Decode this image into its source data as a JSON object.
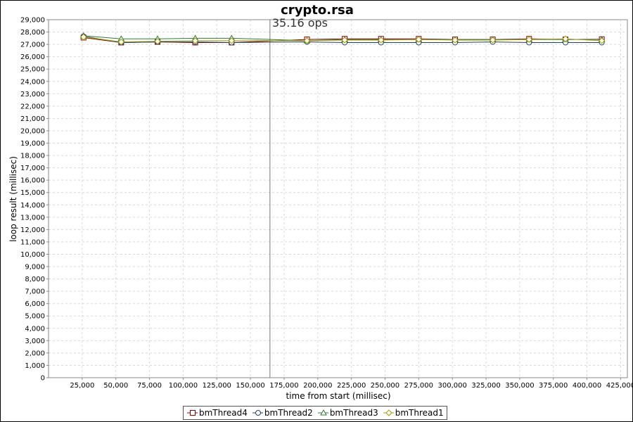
{
  "chart_data": {
    "type": "line",
    "title": "crypto.rsa",
    "xlabel": "time from start (millisec)",
    "ylabel": "loop result (millisec)",
    "xlim": [
      0,
      430000
    ],
    "ylim": [
      0,
      29000
    ],
    "xticks": [
      25000,
      50000,
      75000,
      100000,
      125000,
      150000,
      175000,
      200000,
      225000,
      250000,
      275000,
      300000,
      325000,
      350000,
      375000,
      400000,
      425000
    ],
    "xtick_labels": [
      "25,000",
      "50,000",
      "75,000",
      "100,000",
      "125,000",
      "150,000",
      "175,000",
      "200,000",
      "225,000",
      "250,000",
      "275,000",
      "300,000",
      "325,000",
      "350,000",
      "375,000",
      "400,000",
      "425,000"
    ],
    "yticks": [
      0,
      1000,
      2000,
      3000,
      4000,
      5000,
      6000,
      7000,
      8000,
      9000,
      10000,
      11000,
      12000,
      13000,
      14000,
      15000,
      16000,
      17000,
      18000,
      19000,
      20000,
      21000,
      22000,
      23000,
      24000,
      25000,
      26000,
      27000,
      28000,
      29000
    ],
    "ytick_labels": [
      "0",
      "1,000",
      "2,000",
      "3,000",
      "4,000",
      "5,000",
      "6,000",
      "7,000",
      "8,000",
      "9,000",
      "10,000",
      "11,000",
      "12,000",
      "13,000",
      "14,000",
      "15,000",
      "16,000",
      "17,000",
      "18,000",
      "19,000",
      "20,000",
      "21,000",
      "22,000",
      "23,000",
      "24,000",
      "25,000",
      "26,000",
      "27,000",
      "28,000",
      "29,000"
    ],
    "grid": true,
    "legend_position": "bottom",
    "vertical_marker": {
      "x": 164500,
      "label": "35.16 ops"
    },
    "series": [
      {
        "name": "bmThread4",
        "color": "#8b0000",
        "marker": "square",
        "x": [
          26000,
          54000,
          81000,
          109000,
          136000,
          192000,
          220000,
          247000,
          275000,
          302000,
          330000,
          357000,
          384000,
          411000
        ],
        "y": [
          27550,
          27150,
          27200,
          27150,
          27150,
          27400,
          27450,
          27450,
          27450,
          27400,
          27400,
          27450,
          27400,
          27420
        ]
      },
      {
        "name": "bmThread2",
        "color": "#1f3f6f",
        "marker": "circle",
        "x": [
          26000,
          54000,
          81000,
          109000,
          136000,
          192000,
          220000,
          247000,
          275000,
          302000,
          330000,
          357000,
          384000,
          411000
        ],
        "y": [
          27650,
          27150,
          27200,
          27200,
          27150,
          27200,
          27150,
          27150,
          27150,
          27150,
          27200,
          27150,
          27150,
          27150
        ]
      },
      {
        "name": "bmThread3",
        "color": "#2e7d32",
        "marker": "triangle",
        "x": [
          26000,
          54000,
          81000,
          109000,
          136000,
          192000,
          220000,
          247000,
          275000,
          302000,
          330000,
          357000,
          384000,
          411000
        ],
        "y": [
          27700,
          27450,
          27450,
          27500,
          27500,
          27300,
          27400,
          27400,
          27400,
          27400,
          27400,
          27400,
          27400,
          27400
        ]
      },
      {
        "name": "bmThread1",
        "color": "#a39b00",
        "marker": "diamond",
        "x": [
          26000,
          54000,
          81000,
          109000,
          136000,
          192000,
          220000,
          247000,
          275000,
          302000,
          330000,
          357000,
          384000,
          411000
        ],
        "y": [
          27600,
          27200,
          27250,
          27300,
          27300,
          27300,
          27350,
          27350,
          27400,
          27350,
          27350,
          27400,
          27450,
          27300
        ]
      }
    ]
  }
}
